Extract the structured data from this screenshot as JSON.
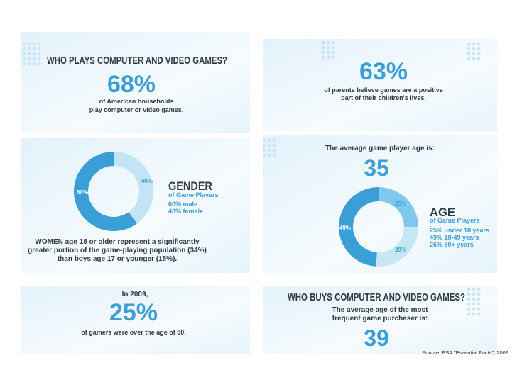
{
  "panels": {
    "plays": {
      "title": "WHO PLAYS COMPUTER AND VIDEO GAMES?",
      "stat": "68%",
      "lines": [
        "of American households",
        "play computer or video games."
      ]
    },
    "parents": {
      "stat": "63%",
      "lines": [
        "of parents believe games are a positive",
        "part of their children's lives."
      ]
    },
    "gender": {
      "heading": "GENDER",
      "subheading": "of Game Players",
      "legend": [
        "60% male",
        "40% female"
      ],
      "categories": [
        "female",
        "male"
      ],
      "values": [
        40,
        60
      ],
      "value_labels": [
        "40%",
        "60%"
      ],
      "colors": [
        "#c2e4f6",
        "#3b9fd7"
      ],
      "note": [
        "WOMEN age 18 or older represent a significantly",
        "greater portion of the game-playing population (34%)",
        "than boys age 17 or younger (18%)."
      ]
    },
    "age": {
      "intro": "The average game player age is:",
      "stat": "35",
      "heading": "AGE",
      "subheading": "of Game Players",
      "legend": [
        "25% under 18 years",
        "49% 18-49 years",
        "26% 50+ years"
      ],
      "categories": [
        "under 18",
        "50+",
        "18-49"
      ],
      "values": [
        25,
        26,
        49
      ],
      "value_labels": [
        "25%",
        "26%",
        "49%"
      ],
      "colors": [
        "#7fc8ee",
        "#c7e7f7",
        "#3b9fd7"
      ]
    },
    "older": {
      "intro": "In 2009,",
      "stat": "25%",
      "line": "of gamers were over the age of 50."
    },
    "buys": {
      "title": "WHO BUYS COMPUTER AND VIDEO GAMES?",
      "lines": [
        "The average age of the most",
        "frequent game purchaser is:"
      ],
      "stat": "39"
    }
  },
  "source": "Source: ESA \"Essential Facts\", 2009"
}
